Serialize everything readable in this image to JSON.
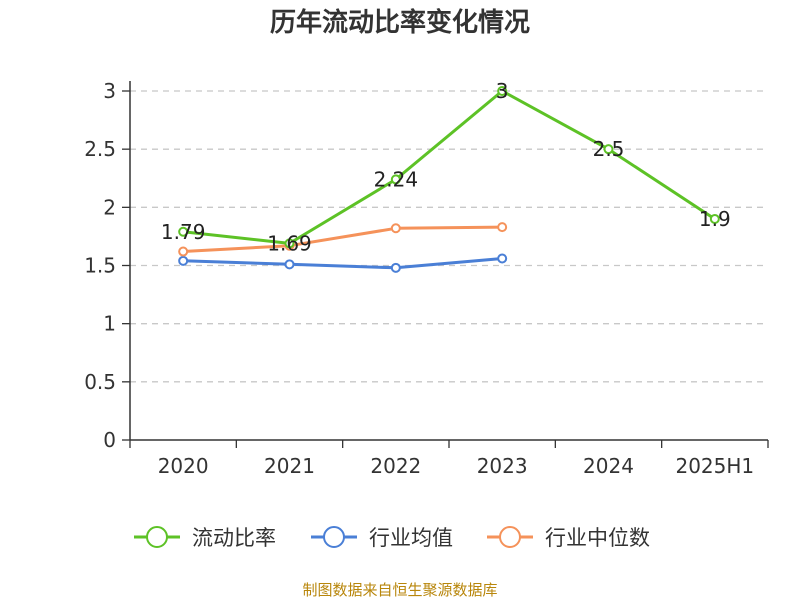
{
  "chart_data": {
    "type": "line",
    "title": "历年流动比率变化情况",
    "categories": [
      "2020",
      "2021",
      "2022",
      "2023",
      "2024",
      "2025H1"
    ],
    "ylim": [
      0,
      3
    ],
    "yticks": [
      "0",
      "0.5",
      "1",
      "1.5",
      "2",
      "2.5",
      "3"
    ],
    "grid": true,
    "legend_position": "bottom",
    "series": [
      {
        "name": "流动比率",
        "color": "#5dc226",
        "values": [
          1.79,
          1.69,
          2.24,
          3,
          2.5,
          1.9
        ],
        "labels": [
          "1.79",
          "1.69",
          "2.24",
          "3",
          "2.5",
          "1.9"
        ]
      },
      {
        "name": "行业均值",
        "color": "#4a7fd6",
        "values": [
          1.54,
          1.51,
          1.48,
          1.56,
          null,
          null
        ]
      },
      {
        "name": "行业中位数",
        "color": "#f5925a",
        "values": [
          1.62,
          1.67,
          1.82,
          1.83,
          null,
          null
        ]
      }
    ],
    "source": "制图数据来自恒生聚源数据库"
  }
}
